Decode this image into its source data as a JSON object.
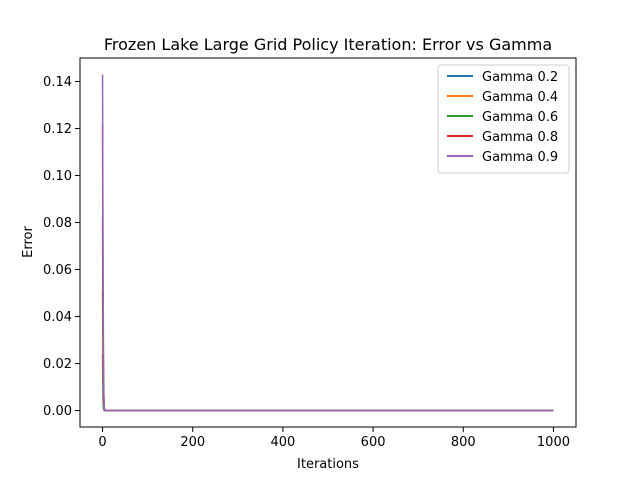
{
  "chart_data": {
    "type": "line",
    "title": "Frozen Lake Large Grid Policy Iteration: Error vs Gamma",
    "xlabel": "Iterations",
    "ylabel": "Error",
    "xlim": [
      -50,
      1050
    ],
    "ylim": [
      -0.007,
      0.15
    ],
    "xticks": [
      0,
      200,
      400,
      600,
      800,
      1000
    ],
    "yticks": [
      0.0,
      0.02,
      0.04,
      0.06,
      0.08,
      0.1,
      0.12,
      0.14
    ],
    "xtick_labels": [
      "0",
      "200",
      "400",
      "600",
      "800",
      "1000"
    ],
    "ytick_labels": [
      "0.00",
      "0.02",
      "0.04",
      "0.06",
      "0.08",
      "0.10",
      "0.12",
      "0.14"
    ],
    "grid": false,
    "legend_position": "top-right",
    "series": [
      {
        "name": "Gamma 0.2",
        "color": "#1f77b4",
        "x": [
          0,
          1,
          2,
          3,
          4,
          5,
          1000
        ],
        "y": [
          0.024,
          0.005,
          0.001,
          0.0002,
          0.0,
          0.0,
          0.0
        ]
      },
      {
        "name": "Gamma 0.4",
        "color": "#ff7f0e",
        "x": [
          0,
          1,
          2,
          3,
          4,
          5,
          1000
        ],
        "y": [
          0.051,
          0.015,
          0.004,
          0.001,
          0.0,
          0.0,
          0.0
        ]
      },
      {
        "name": "Gamma 0.6",
        "color": "#2ca02c",
        "x": [
          0,
          1,
          2,
          3,
          4,
          5,
          1000
        ],
        "y": [
          0.083,
          0.03,
          0.009,
          0.002,
          0.0,
          0.0,
          0.0
        ]
      },
      {
        "name": "Gamma 0.8",
        "color": "#d62728",
        "x": [
          0,
          1,
          2,
          3,
          4,
          5,
          1000
        ],
        "y": [
          0.121,
          0.05,
          0.016,
          0.004,
          0.001,
          0.0,
          0.0
        ]
      },
      {
        "name": "Gamma 0.9",
        "color": "#9467bd",
        "x": [
          0,
          1,
          2,
          3,
          4,
          5,
          1000
        ],
        "y": [
          0.143,
          0.07,
          0.025,
          0.007,
          0.001,
          0.0,
          0.0
        ]
      }
    ]
  }
}
